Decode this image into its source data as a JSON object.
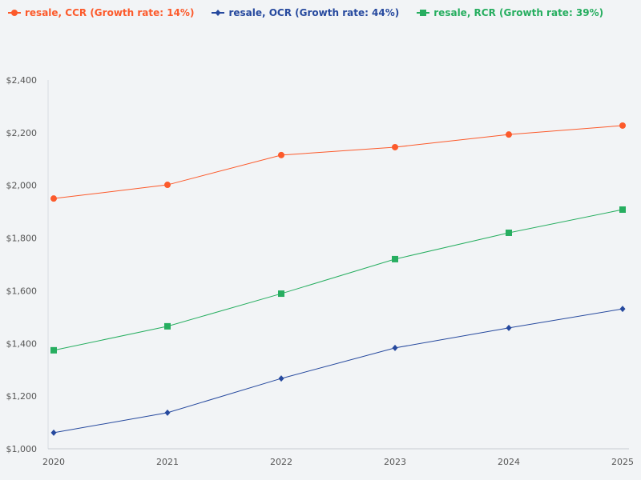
{
  "chart_data": {
    "type": "line",
    "title": "",
    "xlabel": "",
    "ylabel": "",
    "categories": [
      "2020",
      "2021",
      "2022",
      "2023",
      "2024",
      "2025"
    ],
    "ylim": [
      1000,
      2400
    ],
    "yticks": [
      "$1,000",
      "$1,200",
      "$1,400",
      "$1,600",
      "$1,800",
      "$2,000",
      "$2,200",
      "$2,400"
    ],
    "ytick_values": [
      1000,
      1200,
      1400,
      1600,
      1800,
      2000,
      2200,
      2400
    ],
    "grid": false,
    "legend_position": "top-left",
    "series": [
      {
        "name": "resale, CCR (Growth rate: 14%)",
        "color": "#fc5a2b",
        "marker": "circle",
        "values": [
          1950,
          2002,
          2115,
          2145,
          2193,
          2227
        ]
      },
      {
        "name": "resale, OCR (Growth rate: 44%)",
        "color": "#26499e",
        "marker": "diamond",
        "values": [
          1061,
          1137,
          1267,
          1383,
          1459,
          1531
        ]
      },
      {
        "name": "resale, RCR (Growth rate: 39%)",
        "color": "#27ae60",
        "marker": "square",
        "values": [
          1374,
          1465,
          1589,
          1720,
          1820,
          1908
        ]
      }
    ]
  }
}
